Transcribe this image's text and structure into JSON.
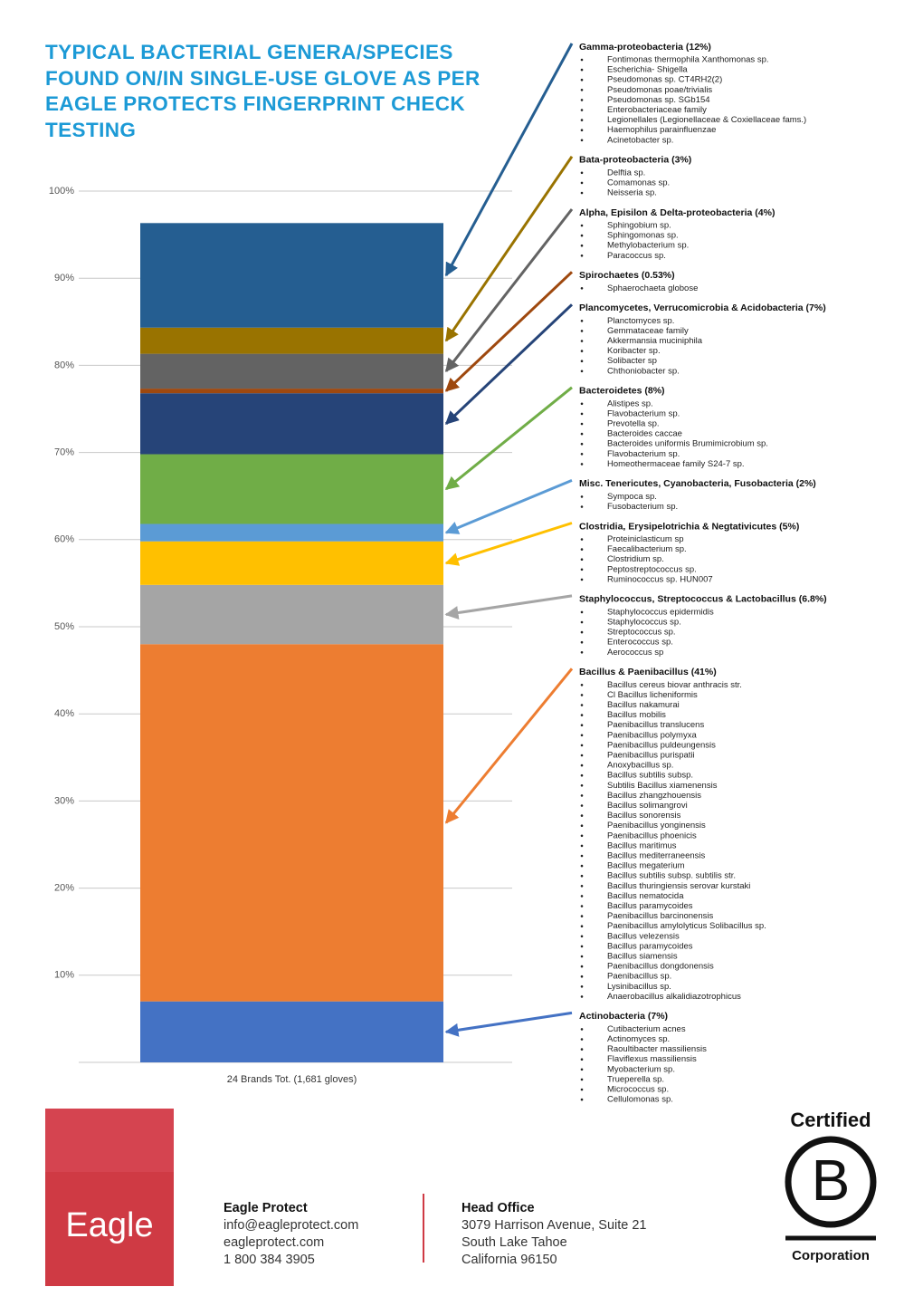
{
  "chart_data": {
    "type": "bar",
    "stacked": true,
    "title": "TYPICAL BACTERIAL GENERA/SPECIES FOUND ON/IN SINGLE-USE GLOVE AS PER EAGLE PROTECTS FINGERPRINT CHECK TESTING",
    "categories": [
      "24 Brands Tot. (1,681 gloves)"
    ],
    "ylim": [
      0,
      100
    ],
    "yticks": [
      {
        "value": 10,
        "label": "10%"
      },
      {
        "value": 20,
        "label": "20%"
      },
      {
        "value": 30,
        "label": "30%"
      },
      {
        "value": 40,
        "label": "40%"
      },
      {
        "value": 50,
        "label": "50%"
      },
      {
        "value": 60,
        "label": "60%"
      },
      {
        "value": 70,
        "label": "70%"
      },
      {
        "value": 80,
        "label": "80%"
      },
      {
        "value": 90,
        "label": "90%"
      },
      {
        "value": 100,
        "label": "100%"
      }
    ],
    "grid": true,
    "series": [
      {
        "name": "Gamma-proteobacteria (12%)",
        "color": "#255e91",
        "values": [
          12
        ],
        "members": [
          "Fontimonas thermophila Xanthomonas sp.",
          "Escherichia- Shigella",
          "Pseudomonas sp. CT4RH2(2)",
          "Pseudomonas poae/trivialis",
          "Pseudomonas sp. SGb154",
          "Enterobacteriaceae family",
          "Legionellales (Legionellaceae & Coxiellaceae fams.)",
          "Haemophilus parainfluenzae",
          "Acinetobacter sp."
        ]
      },
      {
        "name": "Bata-proteobacteria (3%)",
        "color": "#997300",
        "values": [
          3
        ],
        "members": [
          "Delftia sp.",
          "Comamonas sp.",
          "Neisseria sp."
        ]
      },
      {
        "name": "Alpha, Episilon & Delta-proteobacteria (4%)",
        "color": "#636363",
        "values": [
          4
        ],
        "members": [
          "Sphingobium sp.",
          "Sphingomonas sp.",
          "Methylobacterium sp.",
          "Paracoccus sp."
        ]
      },
      {
        "name": "Spirochaetes (0.53%)",
        "color": "#9e480e",
        "values": [
          0.53
        ],
        "members": [
          "Sphaerochaeta globose"
        ]
      },
      {
        "name": "Plancomycetes, Verrucomicrobia & Acidobacteria (7%)",
        "color": "#264478",
        "values": [
          7
        ],
        "members": [
          "Planctomyces sp.",
          "Gemmataceae family",
          "Akkermansia muciniphila",
          "Koribacter sp.",
          "Solibacter sp",
          "Chthoniobacter sp."
        ]
      },
      {
        "name": "Bacteroidetes (8%)",
        "color": "#70ad47",
        "values": [
          8
        ],
        "members": [
          "Alistipes sp.",
          "Flavobacterium sp.",
          "Prevotella sp.",
          "Bacteroides caccae",
          "Bacteroides uniformis Brumimicrobium sp.",
          "Flavobacterium sp.",
          "Homeothermaceae family S24-7 sp."
        ]
      },
      {
        "name": "Misc. Tenericutes, Cyanobacteria, Fusobacteria (2%)",
        "color": "#5b9bd5",
        "values": [
          2
        ],
        "members": [
          "Sympoca sp.",
          "Fusobacterium sp."
        ]
      },
      {
        "name": "Clostridia, Erysipelotrichia & Negtativicutes (5%)",
        "color": "#ffc000",
        "values": [
          5
        ],
        "members": [
          "Proteiniclasticum sp",
          "Faecalibacterium sp.",
          "Clostridium sp.",
          "Peptostreptococcus sp.",
          "Ruminococcus sp. HUN007"
        ]
      },
      {
        "name": "Staphylococcus, Streptococcus & Lactobacillus (6.8%)",
        "color": "#a5a5a5",
        "values": [
          6.8
        ],
        "members": [
          "Staphylococcus epidermidis",
          "Staphylococcus sp.",
          "Streptococcus sp.",
          "Enterococcus sp.",
          "Aerococcus sp"
        ]
      },
      {
        "name": "Bacillus & Paenibacillus (41%)",
        "color": "#ed7d31",
        "values": [
          41
        ],
        "members": [
          "Bacillus cereus biovar anthracis str.",
          "Cl Bacillus licheniformis",
          "Bacillus nakamurai",
          "Bacillus mobilis",
          "Paenibacillus translucens",
          "Paenibacillus polymyxa",
          "Paenibacillus puldeungensis",
          "Paenibacillus purispatii",
          "Anoxybacillus sp.",
          "Bacillus subtilis subsp.",
          "Subtilis Bacillus xiamenensis",
          "Bacillus zhangzhouensis",
          "Bacillus solimangrovi",
          "Bacillus sonorensis",
          "Paenibacillus yonginensis",
          "Paenibacillus phoenicis",
          "Bacillus maritimus",
          "Bacillus mediterraneensis",
          "Bacillus megaterium",
          "Bacillus subtilis subsp. subtilis str.",
          "Bacillus thuringiensis serovar kurstaki",
          "Bacillus nematocida",
          "Bacillus paramycoides",
          "Paenibacillus barcinonensis",
          "Paenibacillus amylolyticus Solibacillus sp.",
          "Bacillus velezensis",
          "Bacillus paramycoides",
          "Bacillus siamensis",
          "Paenibacillus dongdonensis",
          "Paenibacillus sp.",
          "Lysinibacillus sp.",
          "Anaerobacillus alkalidiazotrophicus"
        ]
      },
      {
        "name": "Actinobacteria (7%)",
        "color": "#4472c4",
        "values": [
          7
        ],
        "members": [
          "Cutibacterium acnes",
          "Actinomyces sp.",
          "Raoultibacter massiliensis",
          "Flaviflexus massiliensis",
          "Myobacterium sp.",
          "Trueperella sp.",
          "Micrococcus sp.",
          "Cellulomonas sp."
        ]
      }
    ]
  },
  "footer": {
    "logo": "Eagle",
    "contact": {
      "title": "Eagle Protect",
      "lines": [
        "info@eagleprotect.com",
        "eagleprotect.com",
        "1 800 384 3905"
      ]
    },
    "office": {
      "title": "Head Office",
      "lines": [
        "3079 Harrison Avenue, Suite 21",
        "South Lake Tahoe",
        "California 96150"
      ]
    },
    "certification": {
      "top": "Certified",
      "letter": "B",
      "bottom": "Corporation"
    }
  }
}
